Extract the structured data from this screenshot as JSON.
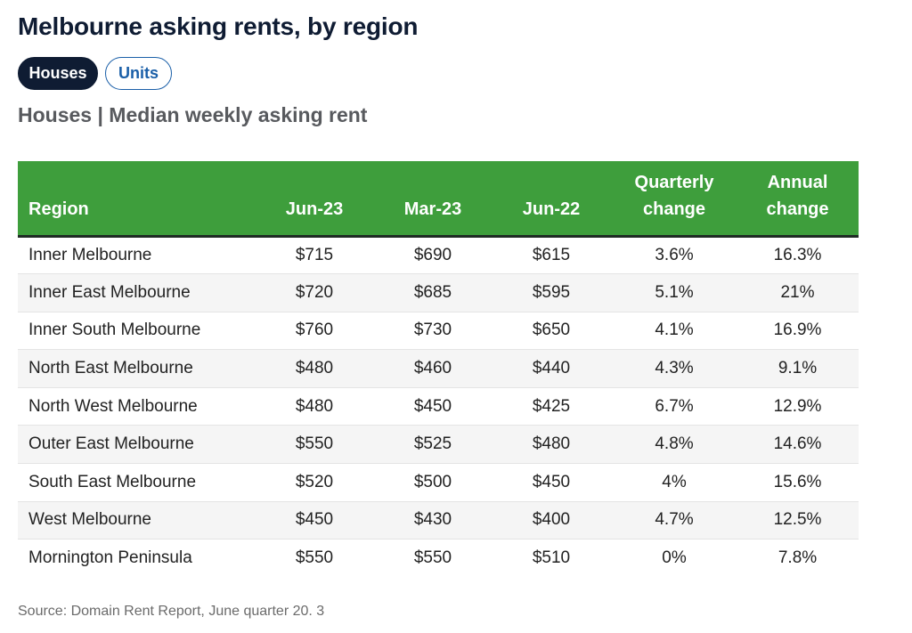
{
  "title": "Melbourne asking rents, by region",
  "toggle": {
    "houses_label": "Houses",
    "units_label": "Units",
    "active": "Houses"
  },
  "subtitle": "Houses | Median weekly asking rent",
  "table": {
    "headers": {
      "region": "Region",
      "jun23": "Jun-23",
      "mar23": "Mar-23",
      "jun22": "Jun-22",
      "quarterly_line1": "Quarterly",
      "quarterly_line2": "change",
      "annual_line1": "Annual",
      "annual_line2": "change"
    },
    "rows": [
      [
        "Inner Melbourne",
        "$715",
        "$690",
        "$615",
        "3.6%",
        "16.3%"
      ],
      [
        "Inner East Melbourne",
        "$720",
        "$685",
        "$595",
        "5.1%",
        "21%"
      ],
      [
        "Inner South Melbourne",
        "$760",
        "$730",
        "$650",
        "4.1%",
        "16.9%"
      ],
      [
        "North East Melbourne",
        "$480",
        "$460",
        "$440",
        "4.3%",
        "9.1%"
      ],
      [
        "North West Melbourne",
        "$480",
        "$450",
        "$425",
        "6.7%",
        "12.9%"
      ],
      [
        "Outer East Melbourne",
        "$550",
        "$525",
        "$480",
        "4.8%",
        "14.6%"
      ],
      [
        "South East Melbourne",
        "$520",
        "$500",
        "$450",
        "4%",
        "15.6%"
      ],
      [
        "West Melbourne",
        "$450",
        "$430",
        "$400",
        "4.7%",
        "12.5%"
      ],
      [
        "Mornington Peninsula",
        "$550",
        "$550",
        "$510",
        "0%",
        "7.8%"
      ]
    ]
  },
  "source": "Source: Domain Rent Report, June quarter 20. 3",
  "colors": {
    "header_bg": "#3e9e3c",
    "title": "#0f1c33",
    "active_pill": "#0f1c33",
    "inactive_pill_border": "#1a5fa8"
  }
}
